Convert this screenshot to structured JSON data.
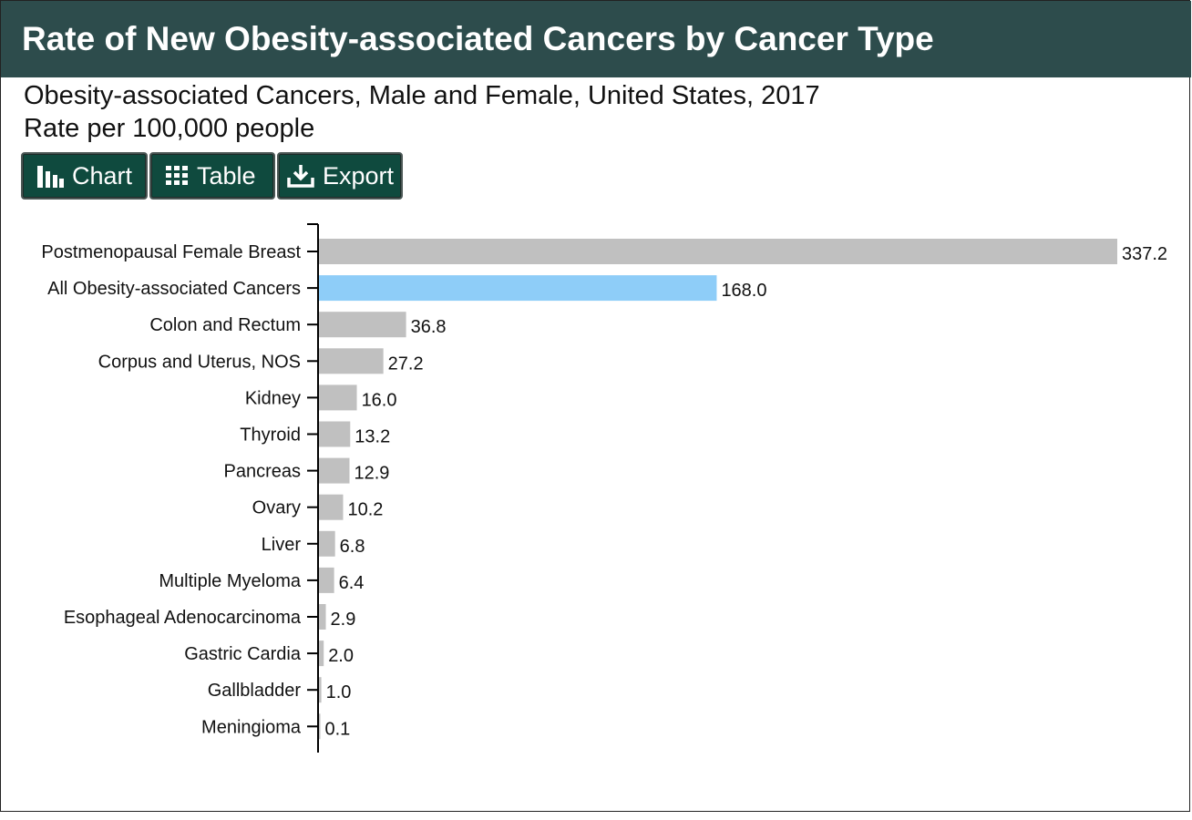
{
  "header": {
    "title": "Rate of New Obesity-associated Cancers by Cancer Type"
  },
  "subtitle": {
    "line1": "Obesity-associated Cancers, Male and Female, United States, 2017",
    "line2": "Rate per 100,000 people"
  },
  "toolbar": {
    "chart_label": "Chart",
    "table_label": "Table",
    "export_label": "Export",
    "icons": [
      "bar-chart-icon",
      "grid-icon",
      "download-icon"
    ]
  },
  "colors": {
    "header_bg": "#2d4c4c",
    "button_bg": "#0f4a3e",
    "bar_default": "#c0c0c0",
    "bar_highlight": "#8ecdf8"
  },
  "chart_data": {
    "type": "bar",
    "orientation": "horizontal",
    "categories": [
      "Postmenopausal Female Breast",
      "All Obesity-associated Cancers",
      "Colon and Rectum",
      "Corpus and Uterus, NOS",
      "Kidney",
      "Thyroid",
      "Pancreas",
      "Ovary",
      "Liver",
      "Multiple Myeloma",
      "Esophageal Adenocarcinoma",
      "Gastric Cardia",
      "Gallbladder",
      "Meningioma"
    ],
    "values": [
      337.2,
      168.0,
      36.8,
      27.2,
      16.0,
      13.2,
      12.9,
      10.2,
      6.8,
      6.4,
      2.9,
      2.0,
      1.0,
      0.1
    ],
    "value_labels": [
      "337.2",
      "168.0",
      "36.8",
      "27.2",
      "16.0",
      "13.2",
      "12.9",
      "10.2",
      "6.8",
      "6.4",
      "2.9",
      "2.0",
      "1.0",
      "0.1"
    ],
    "highlight_category": "All Obesity-associated Cancers",
    "xlim": [
      0,
      337.2
    ],
    "grid": false,
    "legend": "none"
  }
}
